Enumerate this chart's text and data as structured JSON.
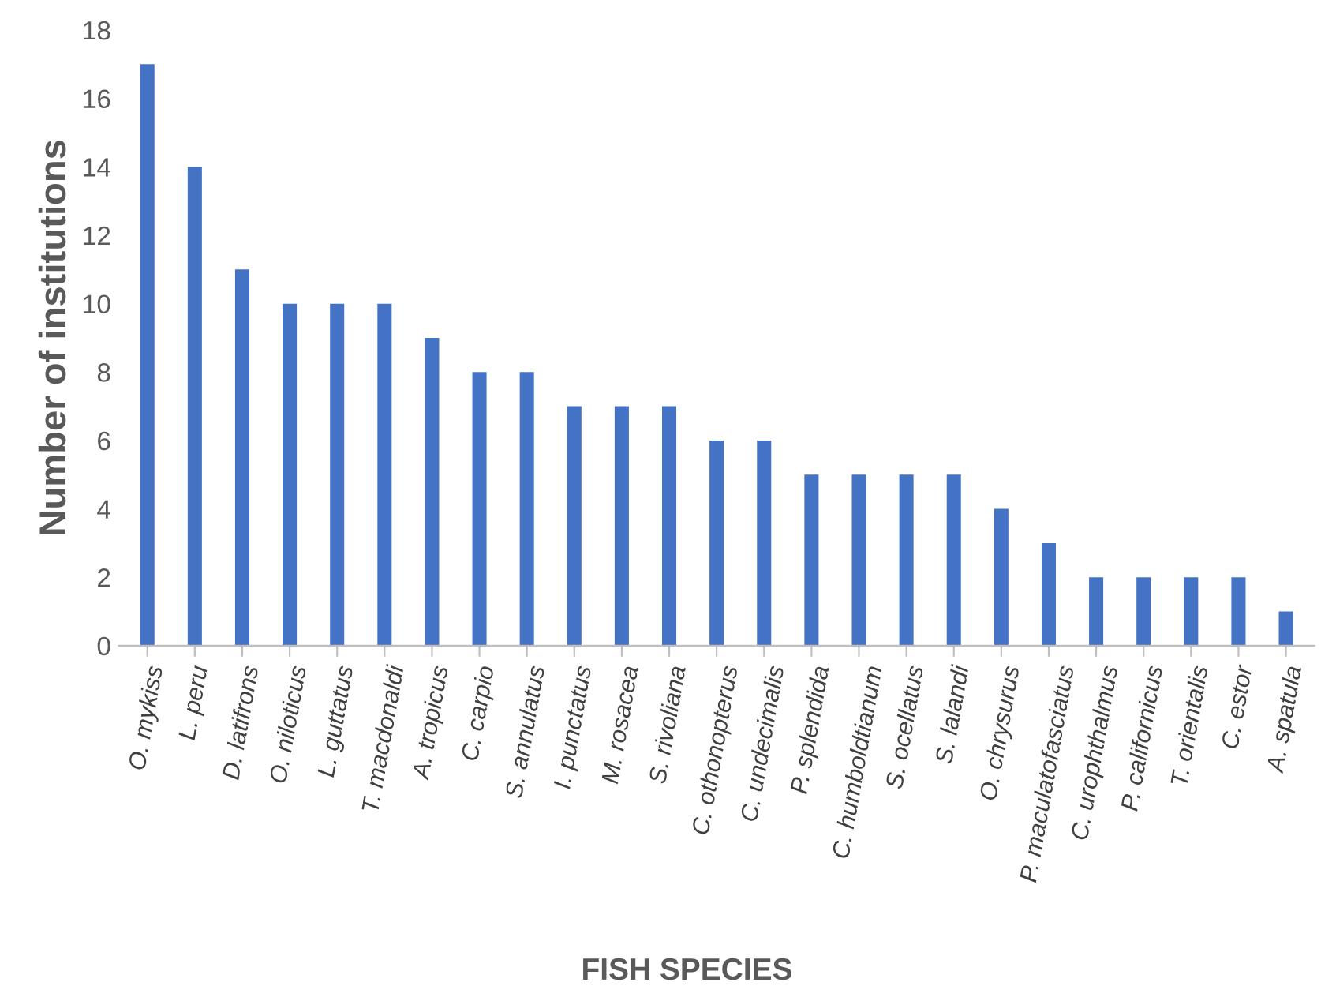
{
  "chart_data": {
    "type": "bar",
    "xlabel": "FISH SPECIES",
    "ylabel": "Number of institutions",
    "categories": [
      "O. mykiss",
      "L. peru",
      "D. latifrons",
      "O. niloticus",
      "L. guttatus",
      "T. macdonaldi",
      "A. tropicus",
      "C. carpio",
      "S. annulatus",
      "I. punctatus",
      "M. rosacea",
      "S. rivoliana",
      "C. othonopterus",
      "C. undecimalis",
      "P. splendida",
      "C. humboldtianum",
      "S. ocellatus",
      "S. lalandi",
      "O. chrysurus",
      "P. maculatofasciatus",
      "C. urophthalmus",
      "P. californicus",
      "T. orientalis",
      "C. estor",
      "A. spatula"
    ],
    "values": [
      17,
      14,
      11,
      10,
      10,
      10,
      9,
      8,
      8,
      7,
      7,
      7,
      6,
      6,
      5,
      5,
      5,
      5,
      4,
      3,
      2,
      2,
      2,
      2,
      1
    ],
    "color": "#4472c4",
    "ylim": [
      0,
      18
    ],
    "yticks": [
      0,
      2,
      4,
      6,
      8,
      10,
      12,
      14,
      16,
      18
    ],
    "grid": false,
    "legend": false
  }
}
